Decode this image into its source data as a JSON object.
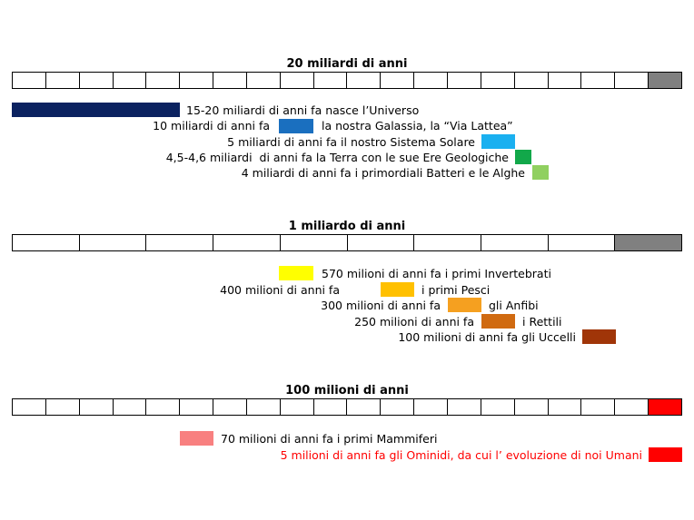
{
  "timelines": [
    {
      "title": "20 miliardi di anni",
      "highlight": "#808080",
      "events": [
        {
          "label": "15-20 miliardi di anni fa nasce l’Universo",
          "color": "#0b2260"
        },
        {
          "label_before": "10 miliardi di anni fa",
          "label_after": "la nostra Galassia, la “Via Lattea”",
          "color": "#1a6fbf"
        },
        {
          "label": "5 miliardi di anni fa il nostro Sistema Solare",
          "color": "#1ab0f0"
        },
        {
          "label": "4,5-4,6 miliardi  di anni fa la Terra con le sue Ere Geologiche",
          "color": "#12a84a"
        },
        {
          "label": "4 miliardi di anni fa i primordiali Batteri e le Alghe",
          "color": "#90d060"
        }
      ]
    },
    {
      "title": "1 miliardo di anni",
      "highlight": "#808080",
      "events": [
        {
          "label": "570 milioni di anni fa i primi Invertebrati",
          "color": "#ffff00"
        },
        {
          "label_before": "400 milioni di anni fa",
          "label_after": "i primi Pesci",
          "color": "#ffc000"
        },
        {
          "label_before": "300 milioni di anni fa",
          "label_after": "gli Anfibi",
          "color": "#f5a020"
        },
        {
          "label_before": "250 milioni di anni fa",
          "label_after": "i Rettili",
          "color": "#d06a10"
        },
        {
          "label": "100 milioni di anni fa gli Uccelli",
          "color": "#a03508"
        }
      ]
    },
    {
      "title": "100 milioni di anni",
      "highlight": "#ff0000",
      "events": [
        {
          "label": "70 milioni di anni fa i primi Mammiferi",
          "color": "#f88080"
        },
        {
          "label": "5 milioni di anni fa gli Ominidi, da cui l’ evoluzione di noi Umani",
          "color": "#ff0000",
          "text_color": "#ff0000"
        }
      ]
    }
  ]
}
